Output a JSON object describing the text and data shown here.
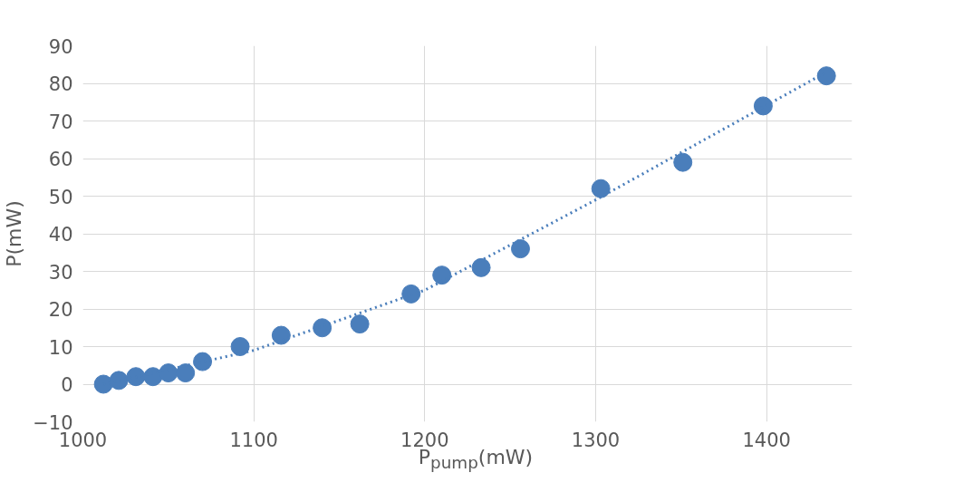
{
  "chart_data": {
    "type": "scatter",
    "xlabel": "P$_{pump}$(mW)",
    "ylabel": "P(mW)",
    "xlim": [
      1000,
      1450
    ],
    "xticks": [
      1000,
      1100,
      1200,
      1300,
      1400
    ],
    "ylim": [
      -10,
      90
    ],
    "yticks": [
      -10,
      0,
      10,
      20,
      30,
      40,
      50,
      60,
      70,
      80,
      90
    ],
    "grid": true,
    "marker": "circle",
    "series": [
      {
        "color": "#4a7ebb",
        "x": [
          1012,
          1021,
          1031,
          1041,
          1050,
          1060,
          1070,
          1092,
          1116,
          1140,
          1162,
          1192,
          1210,
          1233,
          1256,
          1303,
          1351,
          1398,
          1435
        ],
        "values": [
          0,
          1,
          2,
          2,
          3,
          3,
          6,
          10,
          13,
          15,
          16,
          24,
          29,
          31,
          36,
          52,
          59,
          74,
          82
        ]
      },
      {
        "type": "line",
        "color": "#4a7ebb",
        "line_style": "dotted",
        "marker": "none",
        "x": [
          1012,
          1100,
          1200,
          1300,
          1435
        ],
        "values": [
          0,
          9,
          25,
          49,
          83
        ]
      }
    ]
  }
}
